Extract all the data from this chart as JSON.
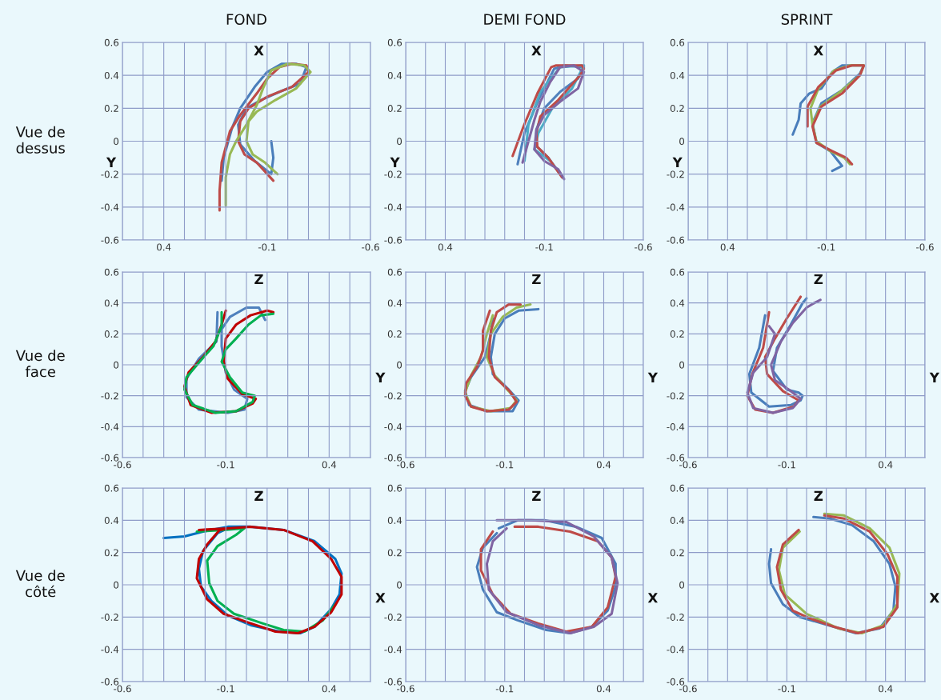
{
  "chart_data": [
    {
      "type": "line",
      "title": "FOND",
      "xlabel": "Y",
      "ylabel": "X",
      "annotations": [
        "Vue de\ndessus"
      ],
      "grid": true,
      "xlim": [
        0.6,
        -0.6
      ],
      "ylim": [
        -0.6,
        0.6
      ],
      "xticks": [
        {
          "value": 0.6,
          "label": null
        },
        {
          "value": 0.5,
          "label": null
        },
        {
          "value": 0.4,
          "label": "0.4"
        },
        {
          "value": 0.3,
          "label": null
        },
        {
          "value": 0.2,
          "label": null
        },
        {
          "value": 0.1,
          "label": null
        },
        {
          "value": 0,
          "label": null
        },
        {
          "value": -0.1,
          "label": "-0.1"
        },
        {
          "value": -0.2,
          "label": null
        },
        {
          "value": -0.3,
          "label": null
        },
        {
          "value": -0.4,
          "label": null
        },
        {
          "value": -0.5,
          "label": null
        },
        {
          "value": -0.6,
          "label": "-0.6"
        }
      ],
      "yticks": [
        -0.6,
        -0.4,
        -0.2,
        0,
        0.2,
        0.4,
        0.6
      ],
      "series": [
        {
          "color": "#4a7ebb",
          "x": [
            0.12,
            0.11,
            0.07,
            0.03,
            -0.04,
            -0.1,
            -0.17,
            -0.24,
            -0.29,
            -0.26,
            -0.16,
            -0.07,
            0.0,
            0.04,
            0.03,
            -0.04,
            -0.12,
            -0.13,
            -0.12
          ],
          "values": [
            -0.24,
            -0.1,
            0.08,
            0.2,
            0.33,
            0.42,
            0.47,
            0.47,
            0.45,
            0.35,
            0.3,
            0.25,
            0.2,
            0.1,
            -0.02,
            -0.12,
            -0.2,
            -0.1,
            0.0
          ]
        },
        {
          "color": "#be4b48",
          "x": [
            0.13,
            0.13,
            0.12,
            0.08,
            0.03,
            -0.05,
            -0.1,
            -0.16,
            -0.22,
            -0.29,
            -0.3,
            -0.22,
            -0.1,
            -0.01,
            0.03,
            0.04,
            0.01,
            -0.05,
            -0.13
          ],
          "values": [
            -0.42,
            -0.3,
            -0.13,
            0.06,
            0.16,
            0.29,
            0.38,
            0.45,
            0.47,
            0.46,
            0.42,
            0.33,
            0.27,
            0.2,
            0.12,
            0.0,
            -0.08,
            -0.13,
            -0.24
          ]
        },
        {
          "color": "#98b954",
          "x": [
            0.1,
            0.1,
            0.08,
            0.05,
            0.0,
            -0.05,
            -0.08,
            -0.12,
            -0.2,
            -0.28,
            -0.31,
            -0.24,
            -0.14,
            -0.05,
            -0.01,
            0.0,
            -0.03,
            -0.09,
            -0.15
          ],
          "values": [
            -0.39,
            -0.22,
            -0.08,
            0.0,
            0.1,
            0.22,
            0.32,
            0.43,
            0.47,
            0.46,
            0.42,
            0.32,
            0.25,
            0.18,
            0.12,
            0.0,
            -0.08,
            -0.13,
            -0.2
          ]
        }
      ]
    },
    {
      "type": "line",
      "title": "DEMI FOND",
      "xlabel": "Y",
      "ylabel": "X",
      "grid": true,
      "xlim": [
        0.6,
        -0.6
      ],
      "ylim": [
        -0.6,
        0.6
      ],
      "xticks": [
        {
          "value": 0.6,
          "label": null
        },
        {
          "value": 0.5,
          "label": null
        },
        {
          "value": 0.4,
          "label": "0.4"
        },
        {
          "value": 0.3,
          "label": null
        },
        {
          "value": 0.2,
          "label": null
        },
        {
          "value": 0.1,
          "label": null
        },
        {
          "value": 0,
          "label": null
        },
        {
          "value": -0.1,
          "label": "-0.1"
        },
        {
          "value": -0.2,
          "label": null
        },
        {
          "value": -0.3,
          "label": null
        },
        {
          "value": -0.4,
          "label": null
        },
        {
          "value": -0.5,
          "label": null
        },
        {
          "value": -0.6,
          "label": "-0.6"
        }
      ],
      "yticks": [
        -0.6,
        -0.4,
        -0.2,
        0,
        0.2,
        0.4,
        0.6
      ],
      "series": [
        {
          "color": "#4f81bd",
          "x": [
            0.035,
            0.0,
            -0.07,
            -0.15,
            -0.2,
            -0.3,
            -0.27,
            -0.18,
            -0.1,
            -0.06,
            -0.06,
            -0.12,
            -0.18
          ],
          "values": [
            -0.14,
            0.05,
            0.25,
            0.44,
            0.46,
            0.45,
            0.38,
            0.3,
            0.2,
            0.07,
            -0.03,
            -0.1,
            -0.2
          ]
        },
        {
          "color": "#4bacc6",
          "x": [
            0.0,
            -0.02,
            -0.08,
            -0.18,
            -0.3,
            -0.24,
            -0.14,
            -0.07,
            -0.05,
            -0.13,
            -0.18
          ],
          "values": [
            -0.12,
            0.1,
            0.3,
            0.45,
            0.46,
            0.32,
            0.2,
            0.05,
            -0.05,
            -0.12,
            -0.2
          ]
        },
        {
          "color": "#be4b48",
          "x": [
            0.06,
            0.005,
            -0.065,
            -0.135,
            -0.16,
            -0.29,
            -0.3,
            -0.28,
            -0.17,
            -0.08,
            -0.06,
            -0.065,
            -0.12,
            -0.19
          ],
          "values": [
            -0.09,
            0.09,
            0.29,
            0.45,
            0.46,
            0.46,
            0.44,
            0.4,
            0.25,
            0.15,
            0.05,
            -0.035,
            -0.1,
            -0.22
          ]
        },
        {
          "color": "#8064a2",
          "x": [
            0.01,
            -0.02,
            -0.05,
            -0.08,
            -0.13,
            -0.18,
            -0.25,
            -0.3,
            -0.27,
            -0.18,
            -0.1,
            -0.06,
            -0.05,
            -0.1,
            -0.17,
            -0.2
          ],
          "values": [
            -0.13,
            0.0,
            0.13,
            0.24,
            0.36,
            0.45,
            0.46,
            0.42,
            0.32,
            0.24,
            0.16,
            0.07,
            -0.05,
            -0.12,
            -0.17,
            -0.23
          ]
        }
      ]
    },
    {
      "type": "line",
      "title": "SPRINT",
      "xlabel": "Y",
      "ylabel": "X",
      "grid": true,
      "xlim": [
        0.6,
        -0.6
      ],
      "ylim": [
        -0.6,
        0.6
      ],
      "xticks": [
        {
          "value": 0.6,
          "label": null
        },
        {
          "value": 0.5,
          "label": null
        },
        {
          "value": 0.4,
          "label": "0.4"
        },
        {
          "value": 0.3,
          "label": null
        },
        {
          "value": 0.2,
          "label": null
        },
        {
          "value": 0.1,
          "label": null
        },
        {
          "value": 0,
          "label": null
        },
        {
          "value": -0.1,
          "label": "-0.1"
        },
        {
          "value": -0.2,
          "label": null
        },
        {
          "value": -0.3,
          "label": null
        },
        {
          "value": -0.4,
          "label": null
        },
        {
          "value": -0.5,
          "label": null
        },
        {
          "value": -0.6,
          "label": "-0.6"
        }
      ],
      "yticks": [
        -0.6,
        -0.4,
        -0.2,
        0,
        0.2,
        0.4,
        0.6
      ],
      "series": [
        {
          "color": "#4a7ebb",
          "x": [
            0.07,
            0.04,
            0.03,
            -0.014,
            -0.075,
            -0.13,
            -0.18,
            -0.29,
            -0.27,
            -0.18,
            -0.075,
            -0.03,
            -0.05,
            -0.12,
            -0.16,
            -0.18,
            -0.13
          ],
          "values": [
            0.04,
            0.13,
            0.23,
            0.29,
            0.32,
            0.42,
            0.46,
            0.46,
            0.41,
            0.31,
            0.23,
            0.11,
            -0.01,
            -0.06,
            -0.12,
            -0.15,
            -0.18
          ]
        },
        {
          "color": "#98b954",
          "x": [
            -0.03,
            -0.02,
            -0.06,
            -0.14,
            -0.22,
            -0.29,
            -0.27,
            -0.17,
            -0.07,
            -0.03,
            -0.05,
            -0.12,
            -0.19,
            -0.22
          ],
          "values": [
            0.1,
            0.2,
            0.32,
            0.43,
            0.46,
            0.46,
            0.4,
            0.3,
            0.21,
            0.1,
            0.0,
            -0.06,
            -0.1,
            -0.14
          ]
        },
        {
          "color": "#be4b48",
          "x": [
            -0.005,
            -0.005,
            -0.06,
            -0.15,
            -0.23,
            -0.29,
            -0.27,
            -0.18,
            -0.075,
            -0.03,
            -0.05,
            -0.13,
            -0.2,
            -0.23
          ],
          "values": [
            0.09,
            0.21,
            0.33,
            0.43,
            0.46,
            0.46,
            0.4,
            0.29,
            0.21,
            0.09,
            -0.01,
            -0.06,
            -0.1,
            -0.14
          ]
        }
      ]
    },
    {
      "type": "line",
      "xlabel": "Y",
      "ylabel": "Z",
      "annotations": [
        "Vue de\nface"
      ],
      "grid": true,
      "xlim": [
        -0.6,
        0.6
      ],
      "ylim": [
        -0.6,
        0.6
      ],
      "xticks": [
        {
          "value": -0.6,
          "label": "-0.6"
        },
        {
          "value": -0.5,
          "label": null
        },
        {
          "value": -0.4,
          "label": null
        },
        {
          "value": -0.3,
          "label": null
        },
        {
          "value": -0.2,
          "label": null
        },
        {
          "value": -0.1,
          "label": "-0.1"
        },
        {
          "value": 0,
          "label": null
        },
        {
          "value": 0.1,
          "label": null
        },
        {
          "value": 0.2,
          "label": null
        },
        {
          "value": 0.3,
          "label": null
        },
        {
          "value": 0.4,
          "label": "0.4"
        },
        {
          "value": 0.5,
          "label": null
        },
        {
          "value": 0.6,
          "label": null
        }
      ],
      "yticks": [
        -0.6,
        -0.4,
        -0.2,
        0,
        0.2,
        0.4,
        0.6
      ],
      "series": [
        {
          "color": "#4f81bd",
          "x": [
            -0.14,
            -0.145,
            -0.23,
            -0.29,
            -0.29,
            -0.23,
            -0.09,
            -0.01,
            0.004,
            -0.06,
            -0.1,
            -0.12,
            -0.12,
            -0.08,
            0.0,
            0.06,
            0.09
          ],
          "values": [
            0.34,
            0.15,
            0.04,
            -0.09,
            -0.21,
            -0.29,
            -0.31,
            -0.29,
            -0.22,
            -0.16,
            -0.05,
            0.12,
            0.23,
            0.31,
            0.37,
            0.37,
            0.29
          ]
        },
        {
          "color": "#c00000",
          "x": [
            -0.1,
            -0.12,
            -0.15,
            -0.21,
            -0.28,
            -0.3,
            -0.27,
            -0.17,
            -0.05,
            0.03,
            0.045,
            -0.02,
            -0.09,
            -0.11,
            -0.1,
            -0.05,
            0.02,
            0.1,
            0.13
          ],
          "values": [
            0.35,
            0.26,
            0.15,
            0.05,
            -0.05,
            -0.14,
            -0.26,
            -0.31,
            -0.3,
            -0.25,
            -0.22,
            -0.19,
            -0.09,
            0.02,
            0.17,
            0.26,
            0.32,
            0.35,
            0.34
          ]
        },
        {
          "color": "#00b050",
          "x": [
            -0.12,
            -0.12,
            -0.16,
            -0.22,
            -0.29,
            -0.3,
            -0.26,
            -0.15,
            -0.05,
            0.03,
            0.04,
            -0.02,
            -0.08,
            -0.12,
            -0.1,
            -0.05,
            0.01,
            0.07,
            0.13
          ],
          "values": [
            0.34,
            0.25,
            0.12,
            0.03,
            -0.08,
            -0.16,
            -0.26,
            -0.31,
            -0.3,
            -0.24,
            -0.2,
            -0.18,
            -0.08,
            0.02,
            0.1,
            0.17,
            0.26,
            0.32,
            0.33
          ]
        }
      ]
    },
    {
      "type": "line",
      "xlabel": "Y",
      "ylabel": "Z",
      "grid": true,
      "xlim": [
        -0.6,
        0.6
      ],
      "ylim": [
        -0.6,
        0.6
      ],
      "xticks": [
        {
          "value": -0.6,
          "label": "-0.6"
        },
        {
          "value": -0.5,
          "label": null
        },
        {
          "value": -0.4,
          "label": null
        },
        {
          "value": -0.3,
          "label": null
        },
        {
          "value": -0.2,
          "label": null
        },
        {
          "value": -0.1,
          "label": "-0.1"
        },
        {
          "value": 0,
          "label": null
        },
        {
          "value": 0.1,
          "label": null
        },
        {
          "value": 0.2,
          "label": null
        },
        {
          "value": 0.3,
          "label": null
        },
        {
          "value": 0.4,
          "label": "0.4"
        },
        {
          "value": 0.5,
          "label": null
        },
        {
          "value": 0.6,
          "label": null
        }
      ],
      "yticks": [
        -0.6,
        -0.4,
        -0.2,
        0,
        0.2,
        0.4,
        0.6
      ],
      "series": [
        {
          "color": "#4a7ebb",
          "x": [
            -0.16,
            -0.17,
            -0.2,
            -0.27,
            -0.3,
            -0.28,
            -0.19,
            -0.06,
            -0.03,
            -0.08,
            -0.16,
            -0.17,
            -0.15,
            -0.1,
            -0.03,
            0.07
          ],
          "values": [
            0.3,
            0.2,
            0.05,
            -0.08,
            -0.17,
            -0.26,
            -0.3,
            -0.3,
            -0.23,
            -0.16,
            -0.06,
            0.05,
            0.2,
            0.3,
            0.35,
            0.36
          ]
        },
        {
          "color": "#98b954",
          "x": [
            -0.16,
            -0.19,
            -0.22,
            -0.27,
            -0.3,
            -0.27,
            -0.17,
            -0.07,
            -0.04,
            -0.08,
            -0.15,
            -0.19,
            -0.17,
            -0.11,
            -0.04,
            0.03
          ],
          "values": [
            0.32,
            0.2,
            0.05,
            -0.07,
            -0.18,
            -0.27,
            -0.3,
            -0.28,
            -0.23,
            -0.17,
            -0.07,
            0.05,
            0.2,
            0.31,
            0.37,
            0.39
          ]
        },
        {
          "color": "#be4b48",
          "x": [
            -0.175,
            -0.21,
            -0.21,
            -0.24,
            -0.295,
            -0.3,
            -0.27,
            -0.19,
            -0.08,
            -0.04,
            -0.075,
            -0.15,
            -0.18,
            -0.17,
            -0.14,
            -0.08,
            -0.02
          ],
          "values": [
            0.35,
            0.22,
            0.09,
            -0.015,
            -0.12,
            -0.2,
            -0.27,
            -0.3,
            -0.29,
            -0.24,
            -0.17,
            -0.08,
            0.05,
            0.22,
            0.34,
            0.39,
            0.39
          ]
        }
      ]
    },
    {
      "type": "line",
      "xlabel": "Y",
      "ylabel": "Z",
      "grid": true,
      "xlim": [
        -0.6,
        0.6
      ],
      "ylim": [
        -0.6,
        0.6
      ],
      "xticks": [
        {
          "value": -0.6,
          "label": "-0.6"
        },
        {
          "value": -0.5,
          "label": null
        },
        {
          "value": -0.4,
          "label": null
        },
        {
          "value": -0.3,
          "label": null
        },
        {
          "value": -0.2,
          "label": null
        },
        {
          "value": -0.1,
          "label": "-0.1"
        },
        {
          "value": 0,
          "label": null
        },
        {
          "value": 0.1,
          "label": null
        },
        {
          "value": 0.2,
          "label": null
        },
        {
          "value": 0.3,
          "label": null
        },
        {
          "value": 0.4,
          "label": "0.4"
        },
        {
          "value": 0.5,
          "label": null
        },
        {
          "value": 0.6,
          "label": null
        }
      ],
      "yticks": [
        -0.6,
        -0.4,
        -0.2,
        0,
        0.2,
        0.4,
        0.6
      ],
      "series": [
        {
          "color": "#4a7ebb",
          "x": [
            -0.21,
            -0.24,
            -0.29,
            -0.28,
            -0.19,
            -0.08,
            -0.03,
            -0.02,
            -0.04,
            -0.1,
            -0.17,
            -0.15,
            -0.08,
            -0.02,
            0.0
          ],
          "values": [
            0.32,
            0.11,
            -0.06,
            -0.18,
            -0.27,
            -0.26,
            -0.23,
            -0.2,
            -0.18,
            -0.16,
            -0.04,
            0.11,
            0.26,
            0.4,
            0.43
          ]
        },
        {
          "color": "#be4b48",
          "x": [
            -0.19,
            -0.22,
            -0.275,
            -0.3,
            -0.26,
            -0.17,
            -0.065,
            -0.04,
            -0.12,
            -0.2,
            -0.21,
            -0.16,
            -0.1,
            -0.03
          ],
          "values": [
            0.34,
            0.11,
            -0.06,
            -0.2,
            -0.29,
            -0.31,
            -0.27,
            -0.23,
            -0.17,
            -0.06,
            0.05,
            0.17,
            0.3,
            0.44
          ]
        },
        {
          "color": "#8064a2",
          "x": [
            -0.19,
            -0.16,
            -0.2,
            -0.27,
            -0.3,
            -0.27,
            -0.17,
            -0.07,
            -0.03,
            -0.09,
            -0.16,
            -0.18,
            -0.13,
            -0.07,
            0.0,
            0.04,
            0.07
          ],
          "values": [
            0.25,
            0.2,
            0.05,
            -0.05,
            -0.18,
            -0.28,
            -0.31,
            -0.28,
            -0.22,
            -0.16,
            -0.1,
            0.0,
            0.15,
            0.27,
            0.37,
            0.4,
            0.42
          ]
        }
      ]
    },
    {
      "type": "line",
      "xlabel": "X",
      "ylabel": "Z",
      "annotations": [
        "Vue de\ncôté"
      ],
      "grid": true,
      "xlim": [
        -0.6,
        0.6
      ],
      "ylim": [
        -0.6,
        0.6
      ],
      "xticks": [
        {
          "value": -0.6,
          "label": "-0.6"
        },
        {
          "value": -0.5,
          "label": null
        },
        {
          "value": -0.4,
          "label": null
        },
        {
          "value": -0.3,
          "label": null
        },
        {
          "value": -0.2,
          "label": null
        },
        {
          "value": -0.1,
          "label": "-0.1"
        },
        {
          "value": 0,
          "label": null
        },
        {
          "value": 0.1,
          "label": null
        },
        {
          "value": 0.2,
          "label": null
        },
        {
          "value": 0.3,
          "label": null
        },
        {
          "value": 0.4,
          "label": "0.4"
        },
        {
          "value": 0.5,
          "label": null
        },
        {
          "value": 0.6,
          "label": null
        }
      ],
      "yticks": [
        -0.6,
        -0.4,
        -0.2,
        0,
        0.2,
        0.4,
        0.6
      ],
      "series": [
        {
          "color": "#0070c0",
          "x": [
            -0.4,
            -0.3,
            -0.21,
            -0.09,
            0.02,
            0.18,
            0.33,
            0.43,
            0.46,
            0.45,
            0.41,
            0.33,
            0.26,
            0.16,
            0.02,
            -0.09,
            -0.17,
            -0.22,
            -0.23,
            -0.21,
            -0.14,
            -0.09
          ],
          "values": [
            0.29,
            0.3,
            0.33,
            0.36,
            0.36,
            0.34,
            0.27,
            0.16,
            0.07,
            -0.06,
            -0.15,
            -0.26,
            -0.3,
            -0.29,
            -0.25,
            -0.19,
            -0.1,
            -0.01,
            0.1,
            0.21,
            0.32,
            0.35
          ]
        },
        {
          "color": "#00b050",
          "x": [
            -0.24,
            -0.11,
            -0.01,
            -0.05,
            -0.14,
            -0.19,
            -0.18,
            -0.14,
            -0.06,
            0.08,
            0.18,
            0.28,
            0.37,
            0.43
          ],
          "values": [
            0.33,
            0.34,
            0.35,
            0.31,
            0.24,
            0.15,
            0.01,
            -0.1,
            -0.18,
            -0.24,
            -0.28,
            -0.29,
            -0.22,
            -0.12
          ]
        },
        {
          "color": "#c00000",
          "x": [
            -0.23,
            -0.09,
            0.02,
            0.18,
            0.32,
            0.41,
            0.46,
            0.46,
            0.41,
            0.33,
            0.25,
            0.14,
            0.0,
            -0.11,
            -0.19,
            -0.24,
            -0.23,
            -0.19,
            -0.13,
            -0.09
          ],
          "values": [
            0.34,
            0.35,
            0.36,
            0.34,
            0.27,
            0.16,
            0.05,
            -0.06,
            -0.17,
            -0.26,
            -0.3,
            -0.29,
            -0.23,
            -0.18,
            -0.09,
            0.04,
            0.16,
            0.25,
            0.34,
            0.35
          ]
        }
      ]
    },
    {
      "type": "line",
      "xlabel": "X",
      "ylabel": "Z",
      "grid": true,
      "xlim": [
        -0.6,
        0.6
      ],
      "ylim": [
        -0.6,
        0.6
      ],
      "xticks": [
        {
          "value": -0.6,
          "label": "-0.6"
        },
        {
          "value": -0.5,
          "label": null
        },
        {
          "value": -0.4,
          "label": null
        },
        {
          "value": -0.3,
          "label": null
        },
        {
          "value": -0.2,
          "label": null
        },
        {
          "value": -0.1,
          "label": "-0.1"
        },
        {
          "value": 0,
          "label": null
        },
        {
          "value": 0.1,
          "label": null
        },
        {
          "value": 0.2,
          "label": null
        },
        {
          "value": 0.3,
          "label": null
        },
        {
          "value": 0.4,
          "label": "0.4"
        },
        {
          "value": 0.5,
          "label": null
        },
        {
          "value": 0.6,
          "label": null
        }
      ],
      "yticks": [
        -0.6,
        -0.4,
        -0.2,
        0,
        0.2,
        0.4,
        0.6
      ],
      "series": [
        {
          "color": "#4a7ebb",
          "x": [
            -0.13,
            -0.035,
            0.1,
            0.26,
            0.39,
            0.46,
            0.46,
            0.42,
            0.34,
            0.23,
            0.11,
            -0.035,
            -0.14,
            -0.21,
            -0.24,
            -0.21,
            -0.14
          ],
          "values": [
            0.35,
            0.4,
            0.4,
            0.36,
            0.29,
            0.13,
            -0.01,
            -0.16,
            -0.26,
            -0.3,
            -0.28,
            -0.22,
            -0.17,
            -0.03,
            0.11,
            0.23,
            0.32
          ]
        },
        {
          "color": "#be4b48",
          "x": [
            -0.16,
            -0.22,
            -0.22,
            -0.16,
            -0.07,
            0.07,
            0.21,
            0.34,
            0.42,
            0.46,
            0.44,
            0.37,
            0.23,
            0.07,
            -0.05
          ],
          "values": [
            0.33,
            0.22,
            0.09,
            -0.06,
            -0.18,
            -0.24,
            -0.29,
            -0.26,
            -0.14,
            0.05,
            0.17,
            0.27,
            0.33,
            0.36,
            0.36
          ]
        },
        {
          "color": "#8064a2",
          "x": [
            -0.14,
            0.035,
            0.21,
            0.35,
            0.44,
            0.47,
            0.44,
            0.35,
            0.23,
            0.07,
            -0.09,
            -0.18,
            -0.19,
            -0.16,
            -0.09
          ],
          "values": [
            0.4,
            0.4,
            0.39,
            0.3,
            0.17,
            0.01,
            -0.18,
            -0.26,
            -0.3,
            -0.25,
            -0.17,
            -0.03,
            0.13,
            0.27,
            0.35
          ]
        }
      ]
    },
    {
      "type": "line",
      "xlabel": "X",
      "ylabel": "Z",
      "grid": true,
      "xlim": [
        -0.6,
        0.6
      ],
      "ylim": [
        -0.6,
        0.6
      ],
      "xticks": [
        {
          "value": -0.6,
          "label": "-0.6"
        },
        {
          "value": -0.5,
          "label": null
        },
        {
          "value": -0.4,
          "label": null
        },
        {
          "value": -0.3,
          "label": null
        },
        {
          "value": -0.2,
          "label": null
        },
        {
          "value": -0.1,
          "label": "-0.1"
        },
        {
          "value": 0,
          "label": null
        },
        {
          "value": 0.1,
          "label": null
        },
        {
          "value": 0.2,
          "label": null
        },
        {
          "value": 0.3,
          "label": null
        },
        {
          "value": 0.4,
          "label": "0.4"
        },
        {
          "value": 0.5,
          "label": null
        },
        {
          "value": 0.6,
          "label": null
        }
      ],
      "yticks": [
        -0.6,
        -0.4,
        -0.2,
        0,
        0.2,
        0.4,
        0.6
      ],
      "series": [
        {
          "color": "#4a7ebb",
          "x": [
            -0.18,
            -0.19,
            -0.18,
            -0.12,
            -0.035,
            0.11,
            0.25,
            0.37,
            0.44,
            0.45,
            0.42,
            0.34,
            0.23,
            0.12,
            0.035
          ],
          "values": [
            0.22,
            0.13,
            0.01,
            -0.12,
            -0.2,
            -0.25,
            -0.3,
            -0.27,
            -0.16,
            -0.01,
            0.13,
            0.27,
            0.37,
            0.41,
            0.42
          ]
        },
        {
          "color": "#98b954",
          "x": [
            -0.035,
            -0.12,
            -0.14,
            -0.11,
            0.0,
            0.16,
            0.28,
            0.39,
            0.46,
            0.47,
            0.42,
            0.32,
            0.19,
            0.09
          ],
          "values": [
            0.33,
            0.23,
            0.09,
            -0.06,
            -0.18,
            -0.27,
            -0.3,
            -0.25,
            -0.12,
            0.07,
            0.23,
            0.35,
            0.43,
            0.44
          ]
        },
        {
          "color": "#be4b48",
          "x": [
            -0.04,
            -0.12,
            -0.15,
            -0.13,
            -0.07,
            0.02,
            0.14,
            0.26,
            0.39,
            0.46,
            0.46,
            0.41,
            0.32,
            0.19,
            0.09
          ],
          "values": [
            0.34,
            0.25,
            0.11,
            -0.03,
            -0.16,
            -0.21,
            -0.26,
            -0.3,
            -0.26,
            -0.14,
            0.05,
            0.19,
            0.33,
            0.41,
            0.43
          ]
        }
      ]
    }
  ]
}
